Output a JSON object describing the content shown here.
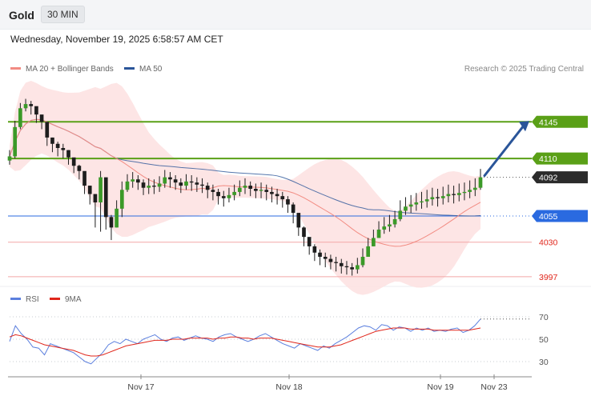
{
  "header": {
    "title": "Gold",
    "timeframe": "30 MIN"
  },
  "datetime": "Wednesday, November 19, 2025 6:58:57 AM CET",
  "legend": {
    "ma20": {
      "label": "MA 20 + Bollinger Bands",
      "color": "#f28b82"
    },
    "ma50": {
      "label": "MA 50",
      "color": "#2a5599"
    }
  },
  "credit": "Research © 2025 Trading Central",
  "rsi_legend": {
    "rsi": {
      "label": "RSI",
      "color": "#5b7fde"
    },
    "ma9": {
      "label": "9MA",
      "color": "#e0261b"
    }
  },
  "chart_data": [
    {
      "type": "candlestick",
      "ylim": [
        3990,
        4185
      ],
      "last_price": "4092",
      "levels": [
        {
          "label": "4145",
          "value": 4145,
          "kind": "resistance",
          "color": "#5aa017"
        },
        {
          "label": "4110",
          "value": 4110,
          "kind": "resistance",
          "color": "#5aa017"
        },
        {
          "label": "4092",
          "value": 4092,
          "kind": "current",
          "color": "#2b2b2b"
        },
        {
          "label": "4055",
          "value": 4055,
          "kind": "pivot",
          "color": "#2a6ae0"
        },
        {
          "label": "4030",
          "value": 4030,
          "kind": "support",
          "color": "#e0261b"
        },
        {
          "label": "3997",
          "value": 3997,
          "kind": "support",
          "color": "#e0261b"
        }
      ],
      "x_ticks": [
        "Nov 17",
        "Nov 18",
        "Nov 19",
        "Nov 23"
      ],
      "close": [
        4112,
        4140,
        4158,
        4162,
        4160,
        4152,
        4145,
        4130,
        4124,
        4120,
        4118,
        4111,
        4103,
        4098,
        4084,
        4076,
        4068,
        4092,
        4054,
        4044,
        4062,
        4080,
        4088,
        4090,
        4087,
        4082,
        4084,
        4083,
        4086,
        4092,
        4090,
        4087,
        4084,
        4088,
        4087,
        4085,
        4084,
        4080,
        4078,
        4074,
        4072,
        4075,
        4078,
        4082,
        4084,
        4081,
        4079,
        4080,
        4078,
        4076,
        4074,
        4071,
        4066,
        4058,
        4044,
        4035,
        4026,
        4020,
        4016,
        4014,
        4011,
        4010,
        4007,
        4006,
        4004,
        4008,
        4016,
        4026,
        4034,
        4042,
        4045,
        4047,
        4052,
        4060,
        4064,
        4066,
        4068,
        4069,
        4071,
        4073,
        4072,
        4074,
        4076,
        4075,
        4077,
        4078,
        4080,
        4082,
        4092
      ],
      "high": [
        4118,
        4146,
        4163,
        4167,
        4165,
        4158,
        4150,
        4136,
        4130,
        4126,
        4124,
        4118,
        4110,
        4104,
        4092,
        4084,
        4074,
        4098,
        4072,
        4056,
        4070,
        4088,
        4095,
        4097,
        4094,
        4090,
        4091,
        4090,
        4093,
        4099,
        4097,
        4094,
        4091,
        4095,
        4094,
        4092,
        4091,
        4087,
        4085,
        4081,
        4079,
        4082,
        4085,
        4089,
        4091,
        4088,
        4086,
        4087,
        4085,
        4083,
        4081,
        4078,
        4074,
        4068,
        4056,
        4045,
        4034,
        4028,
        4023,
        4020,
        4018,
        4016,
        4014,
        4012,
        4010,
        4015,
        4024,
        4034,
        4042,
        4050,
        4054,
        4056,
        4060,
        4070,
        4073,
        4075,
        4077,
        4078,
        4080,
        4082,
        4081,
        4083,
        4085,
        4084,
        4086,
        4087,
        4089,
        4091,
        4100
      ],
      "low": [
        4104,
        4110,
        4138,
        4155,
        4152,
        4144,
        4138,
        4122,
        4116,
        4112,
        4110,
        4104,
        4096,
        4090,
        4076,
        4066,
        4044,
        4040,
        4042,
        4032,
        4044,
        4054,
        4078,
        4082,
        4080,
        4075,
        4076,
        4076,
        4078,
        4082,
        4082,
        4080,
        4077,
        4080,
        4079,
        4078,
        4077,
        4072,
        4070,
        4066,
        4064,
        4068,
        4070,
        4074,
        4076,
        4074,
        4072,
        4072,
        4070,
        4068,
        4066,
        4063,
        4058,
        4048,
        4036,
        4026,
        4018,
        4012,
        4008,
        4006,
        4004,
        4002,
        4000,
        3999,
        3998,
        4000,
        4006,
        4016,
        4026,
        4034,
        4038,
        4040,
        4044,
        4050,
        4056,
        4058,
        4060,
        4062,
        4063,
        4065,
        4064,
        4066,
        4068,
        4067,
        4069,
        4070,
        4072,
        4074,
        4080
      ]
    },
    {
      "type": "line",
      "title": "RSI",
      "ylim": [
        20,
        80
      ],
      "y_ticks": [
        70,
        50,
        30
      ],
      "series": [
        {
          "name": "RSI",
          "values": [
            48,
            62,
            55,
            50,
            43,
            42,
            36,
            46,
            44,
            42,
            40,
            38,
            34,
            30,
            28,
            33,
            38,
            45,
            48,
            46,
            50,
            48,
            46,
            50,
            52,
            54,
            50,
            48,
            51,
            52,
            49,
            51,
            53,
            51,
            50,
            48,
            52,
            54,
            55,
            52,
            50,
            48,
            50,
            53,
            55,
            52,
            49,
            46,
            44,
            42,
            46,
            44,
            42,
            40,
            44,
            42,
            46,
            49,
            52,
            56,
            60,
            62,
            61,
            58,
            63,
            62,
            58,
            61,
            60,
            57,
            60,
            58,
            60,
            57,
            58,
            57,
            59,
            60,
            56,
            58,
            62,
            68
          ]
        },
        {
          "name": "9MA",
          "values": [
            52,
            54,
            53,
            51,
            49,
            47,
            45,
            44,
            43,
            42,
            41,
            40,
            38,
            36,
            35,
            35,
            36,
            38,
            40,
            42,
            44,
            45,
            46,
            47,
            48,
            49,
            49,
            49,
            50,
            50,
            50,
            51,
            51,
            51,
            51,
            50,
            51,
            51,
            52,
            52,
            51,
            51,
            50,
            51,
            51,
            51,
            50,
            49,
            48,
            47,
            46,
            45,
            44,
            43,
            43,
            43,
            44,
            45,
            47,
            49,
            51,
            53,
            55,
            57,
            58,
            59,
            60,
            60,
            60,
            59,
            59,
            59,
            59,
            58,
            58,
            58,
            58,
            58,
            58,
            58,
            59,
            60
          ]
        }
      ]
    }
  ]
}
